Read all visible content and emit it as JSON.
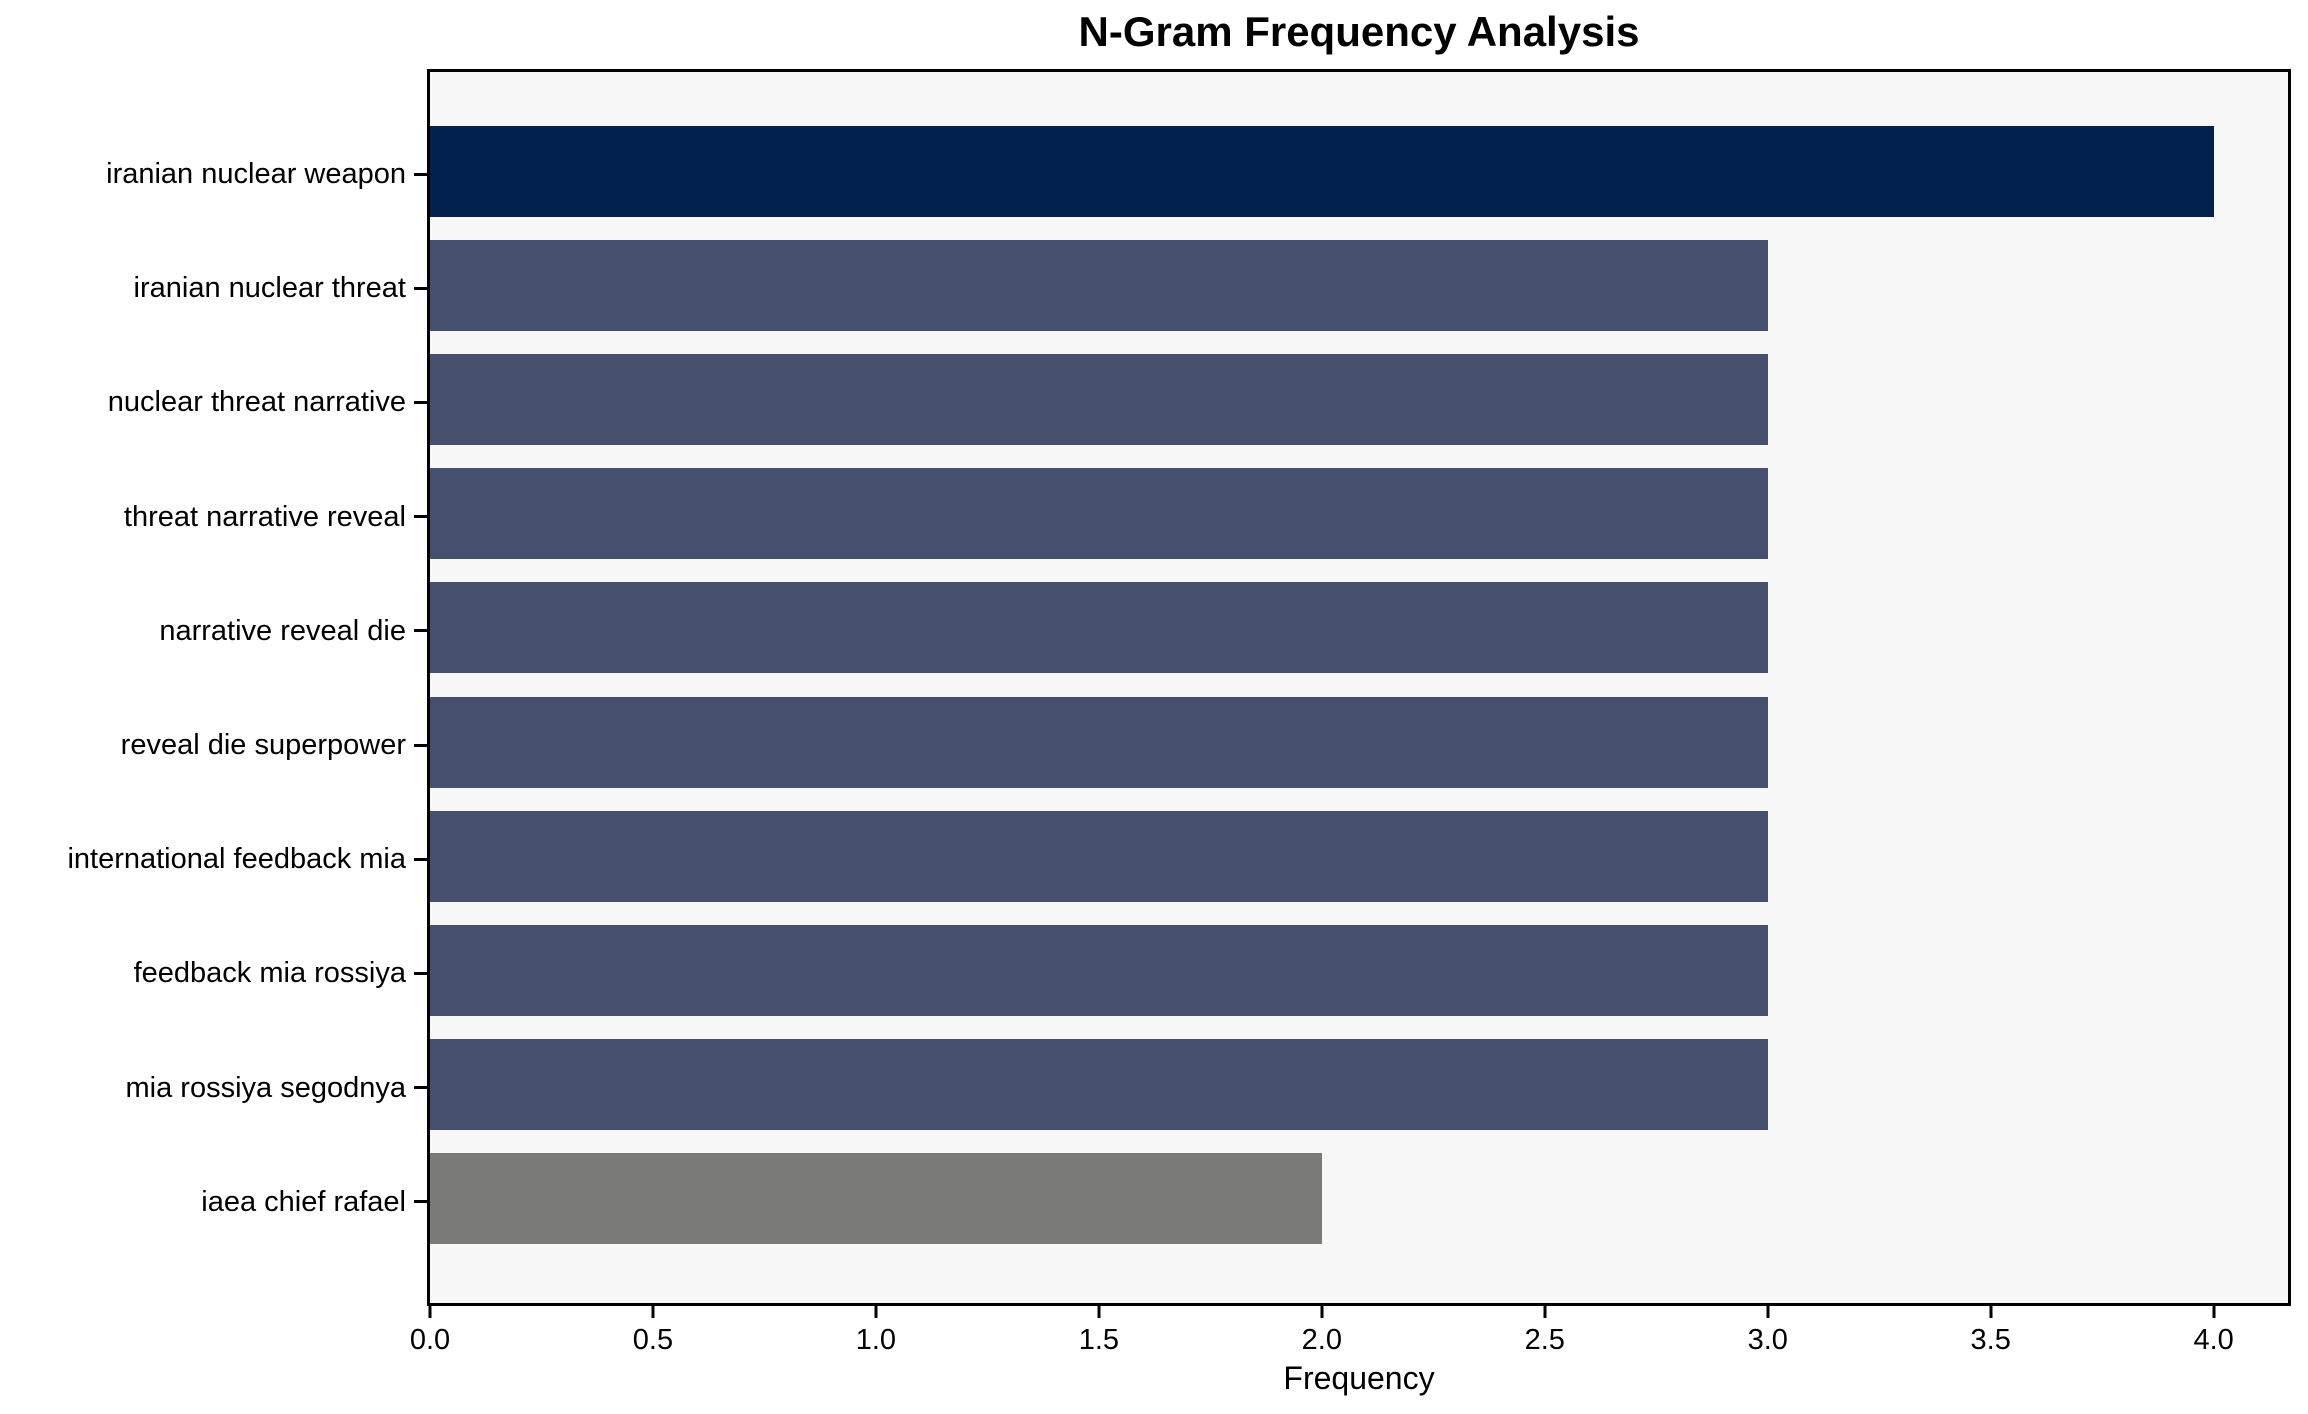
{
  "chart_data": {
    "type": "bar",
    "orientation": "horizontal",
    "title": "N-Gram Frequency Analysis",
    "xlabel": "Frequency",
    "ylabel": "",
    "categories": [
      "iranian nuclear weapon",
      "iranian nuclear threat",
      "nuclear threat narrative",
      "threat narrative reveal",
      "narrative reveal die",
      "reveal die superpower",
      "international feedback mia",
      "feedback mia rossiya",
      "mia rossiya segodnya",
      "iaea chief rafael"
    ],
    "values": [
      4,
      3,
      3,
      3,
      3,
      3,
      3,
      3,
      3,
      2
    ],
    "bar_colors": [
      "#02224d",
      "#46506e",
      "#46506e",
      "#46506e",
      "#46506e",
      "#46506e",
      "#46506e",
      "#46506e",
      "#46506e",
      "#7a7a77"
    ],
    "xticks": [
      0.0,
      0.5,
      1.0,
      1.5,
      2.0,
      2.5,
      3.0,
      3.5,
      4.0
    ],
    "xtick_labels": [
      "0.0",
      "0.5",
      "1.0",
      "1.5",
      "2.0",
      "2.5",
      "3.0",
      "3.5",
      "4.0"
    ],
    "xlim": [
      0,
      4.1667
    ],
    "grid": false,
    "legend": false,
    "colors": {
      "plot_background": "#f7f7f7",
      "figure_background": "#ffffff",
      "axis": "#000000",
      "text": "#000000"
    }
  }
}
